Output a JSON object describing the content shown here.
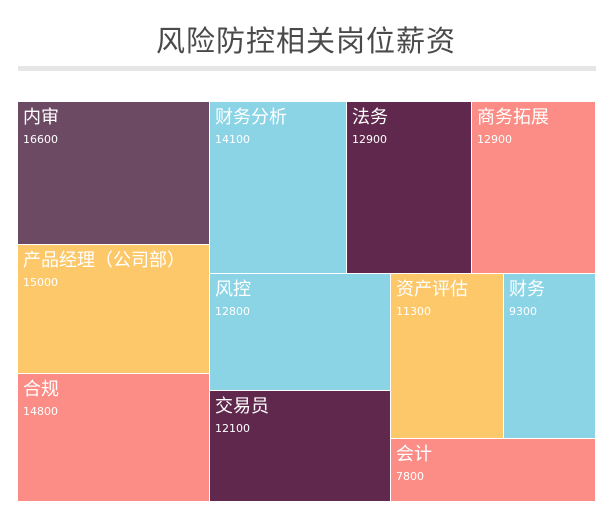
{
  "chart_data": {
    "type": "treemap",
    "title": "风险防控相关岗位薪资",
    "nodes": [
      {
        "name": "内审",
        "value": 16600,
        "color": "#6c4a64"
      },
      {
        "name": "产品经理（公司部）",
        "value": 15000,
        "color": "#fcc86a"
      },
      {
        "name": "合规",
        "value": 14800,
        "color": "#fc8d86"
      },
      {
        "name": "财务分析",
        "value": 14100,
        "color": "#8ad4e6"
      },
      {
        "name": "风控",
        "value": 12800,
        "color": "#8ad4e6"
      },
      {
        "name": "交易员",
        "value": 12100,
        "color": "#5f284c"
      },
      {
        "name": "法务",
        "value": 12900,
        "color": "#5f284c"
      },
      {
        "name": "商务拓展",
        "value": 12900,
        "color": "#fc8d86"
      },
      {
        "name": "资产评估",
        "value": 11300,
        "color": "#fcc86a"
      },
      {
        "name": "财务",
        "value": 9300,
        "color": "#8ad4e6"
      },
      {
        "name": "会计",
        "value": 7800,
        "color": "#fc8d86"
      }
    ]
  }
}
